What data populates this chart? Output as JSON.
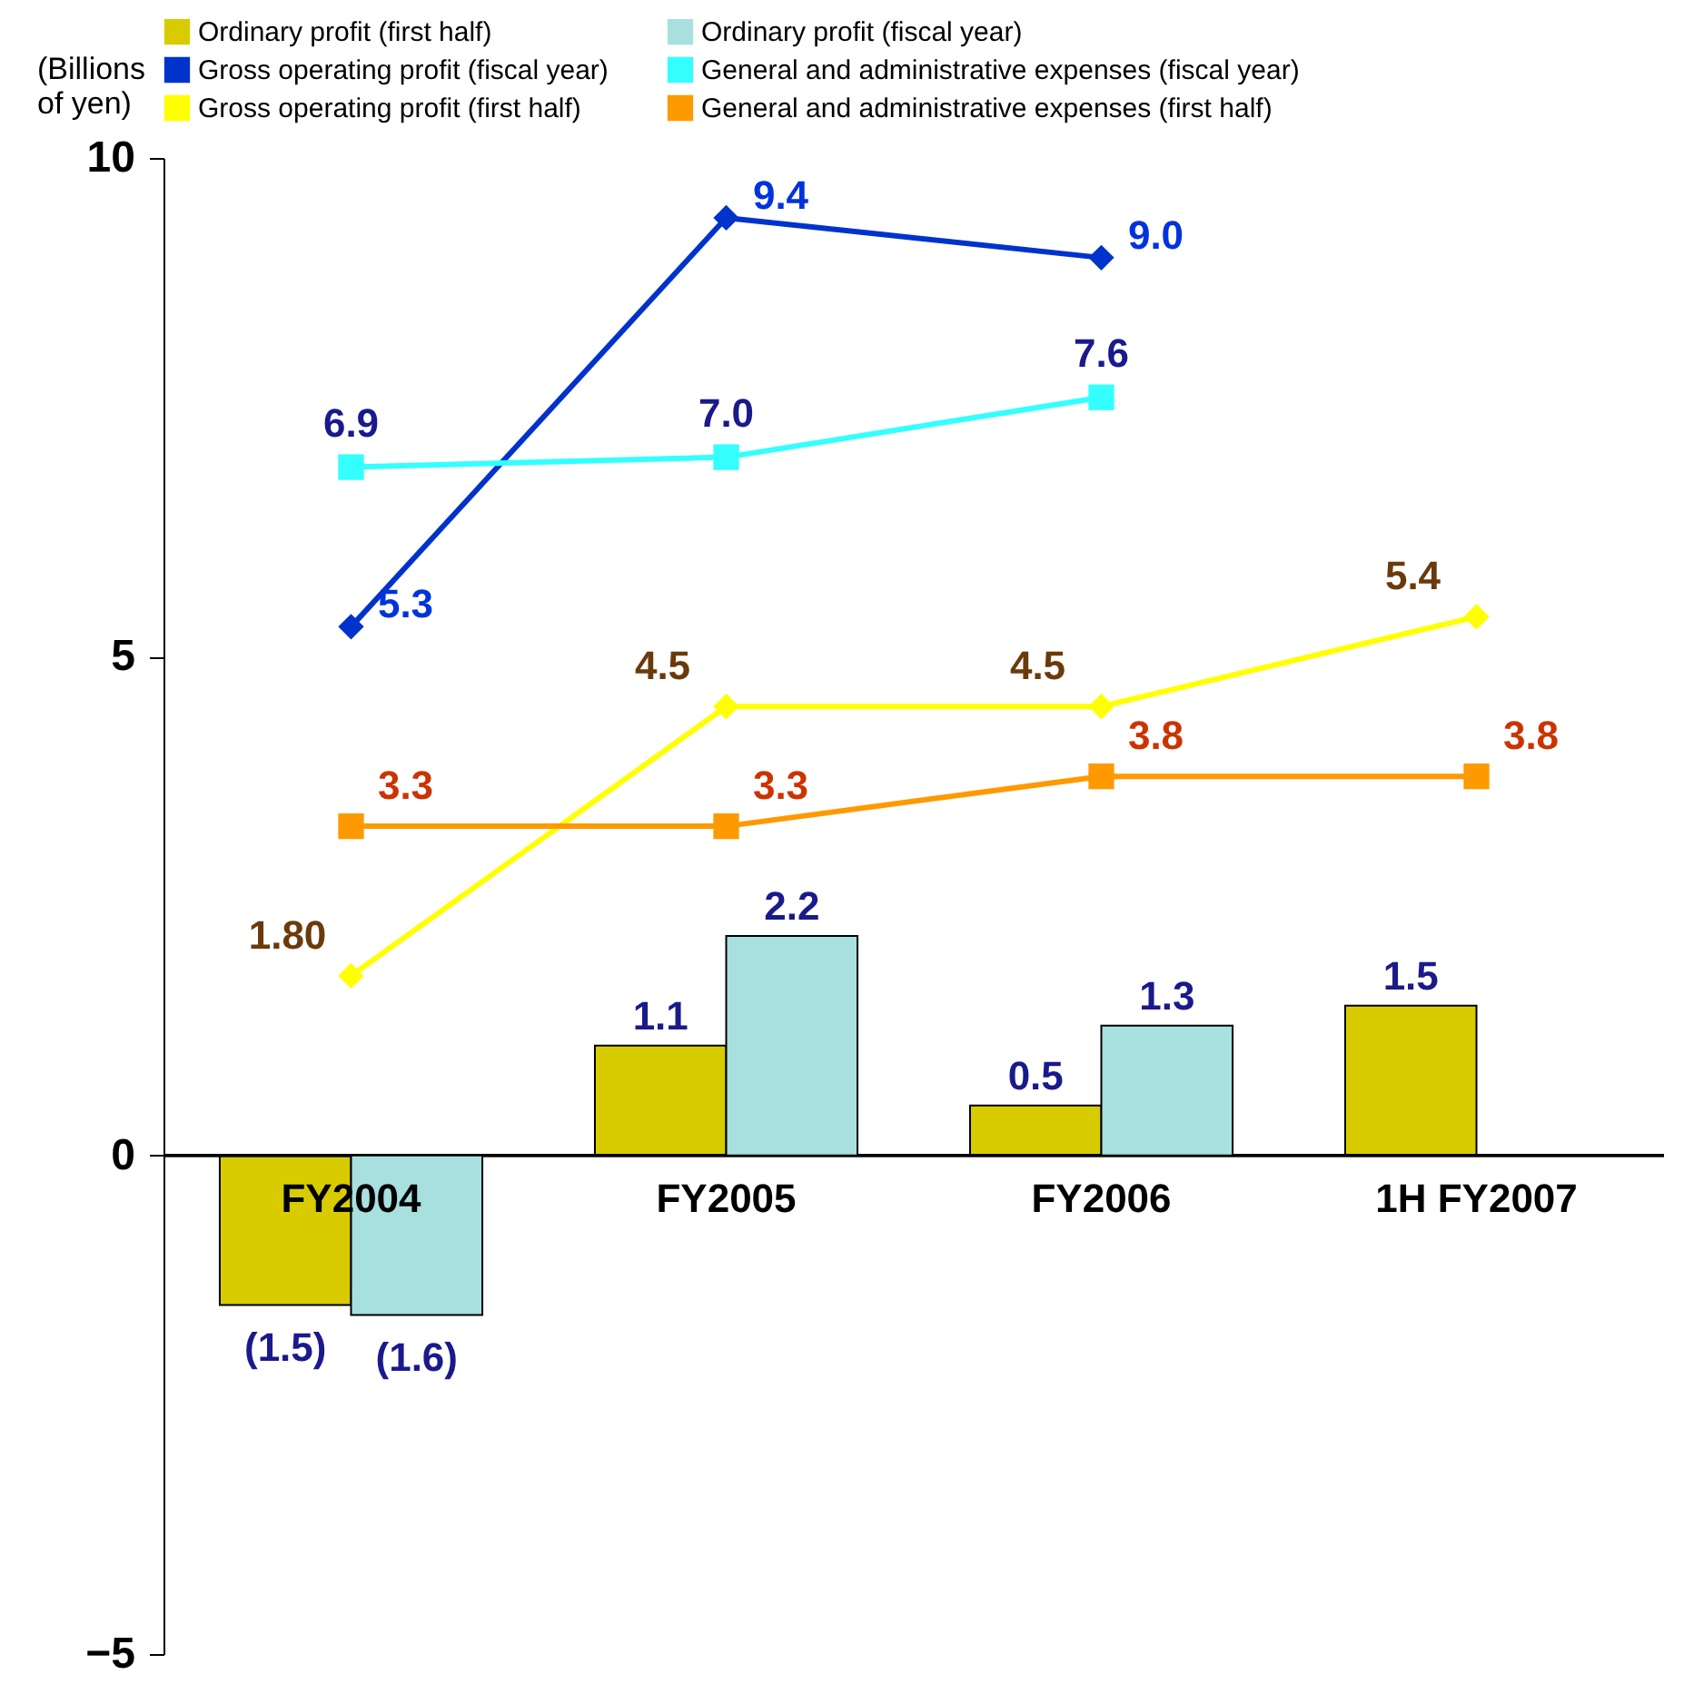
{
  "chart_data": {
    "type": "bar",
    "ylabel": "(Billions\nof yen)",
    "categories": [
      "FY2004",
      "FY2005",
      "FY2006",
      "1H FY2007"
    ],
    "ylim": [
      -5,
      10
    ],
    "yticks": [
      -5,
      0,
      5,
      10
    ],
    "grid": false,
    "legend": "top",
    "series": [
      {
        "name": "Ordinary profit (first half)",
        "color": "#d8cc00",
        "values": [
          -1.5,
          1.1,
          0.5,
          1.5
        ],
        "value_labels": [
          "(1.5)",
          "1.1",
          "0.5",
          "1.5"
        ]
      },
      {
        "name": "Ordinary profit (fiscal year)",
        "color": "#a8e0e0",
        "values": [
          -1.6,
          2.2,
          1.3,
          null
        ],
        "value_labels": [
          "(1.6)",
          "2.2",
          "1.3",
          null
        ]
      },
      {
        "name": "Gross operating profit (fiscal year)",
        "type": "line",
        "marker": "diamond",
        "color": "#0033cc",
        "values": [
          5.3,
          9.4,
          9.0,
          null
        ],
        "value_labels": [
          "5.3",
          "9.4",
          "9.0",
          null
        ]
      },
      {
        "name": "General and administrative expenses (fiscal year)",
        "type": "line",
        "marker": "square",
        "color": "#33ffff",
        "values": [
          6.9,
          7.0,
          7.6,
          null
        ],
        "value_labels": [
          "6.9",
          "7.0",
          "7.6",
          null
        ]
      },
      {
        "name": "Gross operating profit (first half)",
        "type": "line",
        "marker": "diamond",
        "color": "#ffff00",
        "values": [
          1.8,
          4.5,
          4.5,
          5.4
        ],
        "value_labels": [
          "1.80",
          "4.5",
          "4.5",
          "5.4"
        ]
      },
      {
        "name": "General and administrative expenses (first half)",
        "type": "line",
        "marker": "square",
        "color": "#ff9900",
        "values": [
          3.3,
          3.3,
          3.8,
          3.8
        ],
        "value_labels": [
          "3.3",
          "3.3",
          "3.8",
          "3.8"
        ]
      }
    ]
  }
}
